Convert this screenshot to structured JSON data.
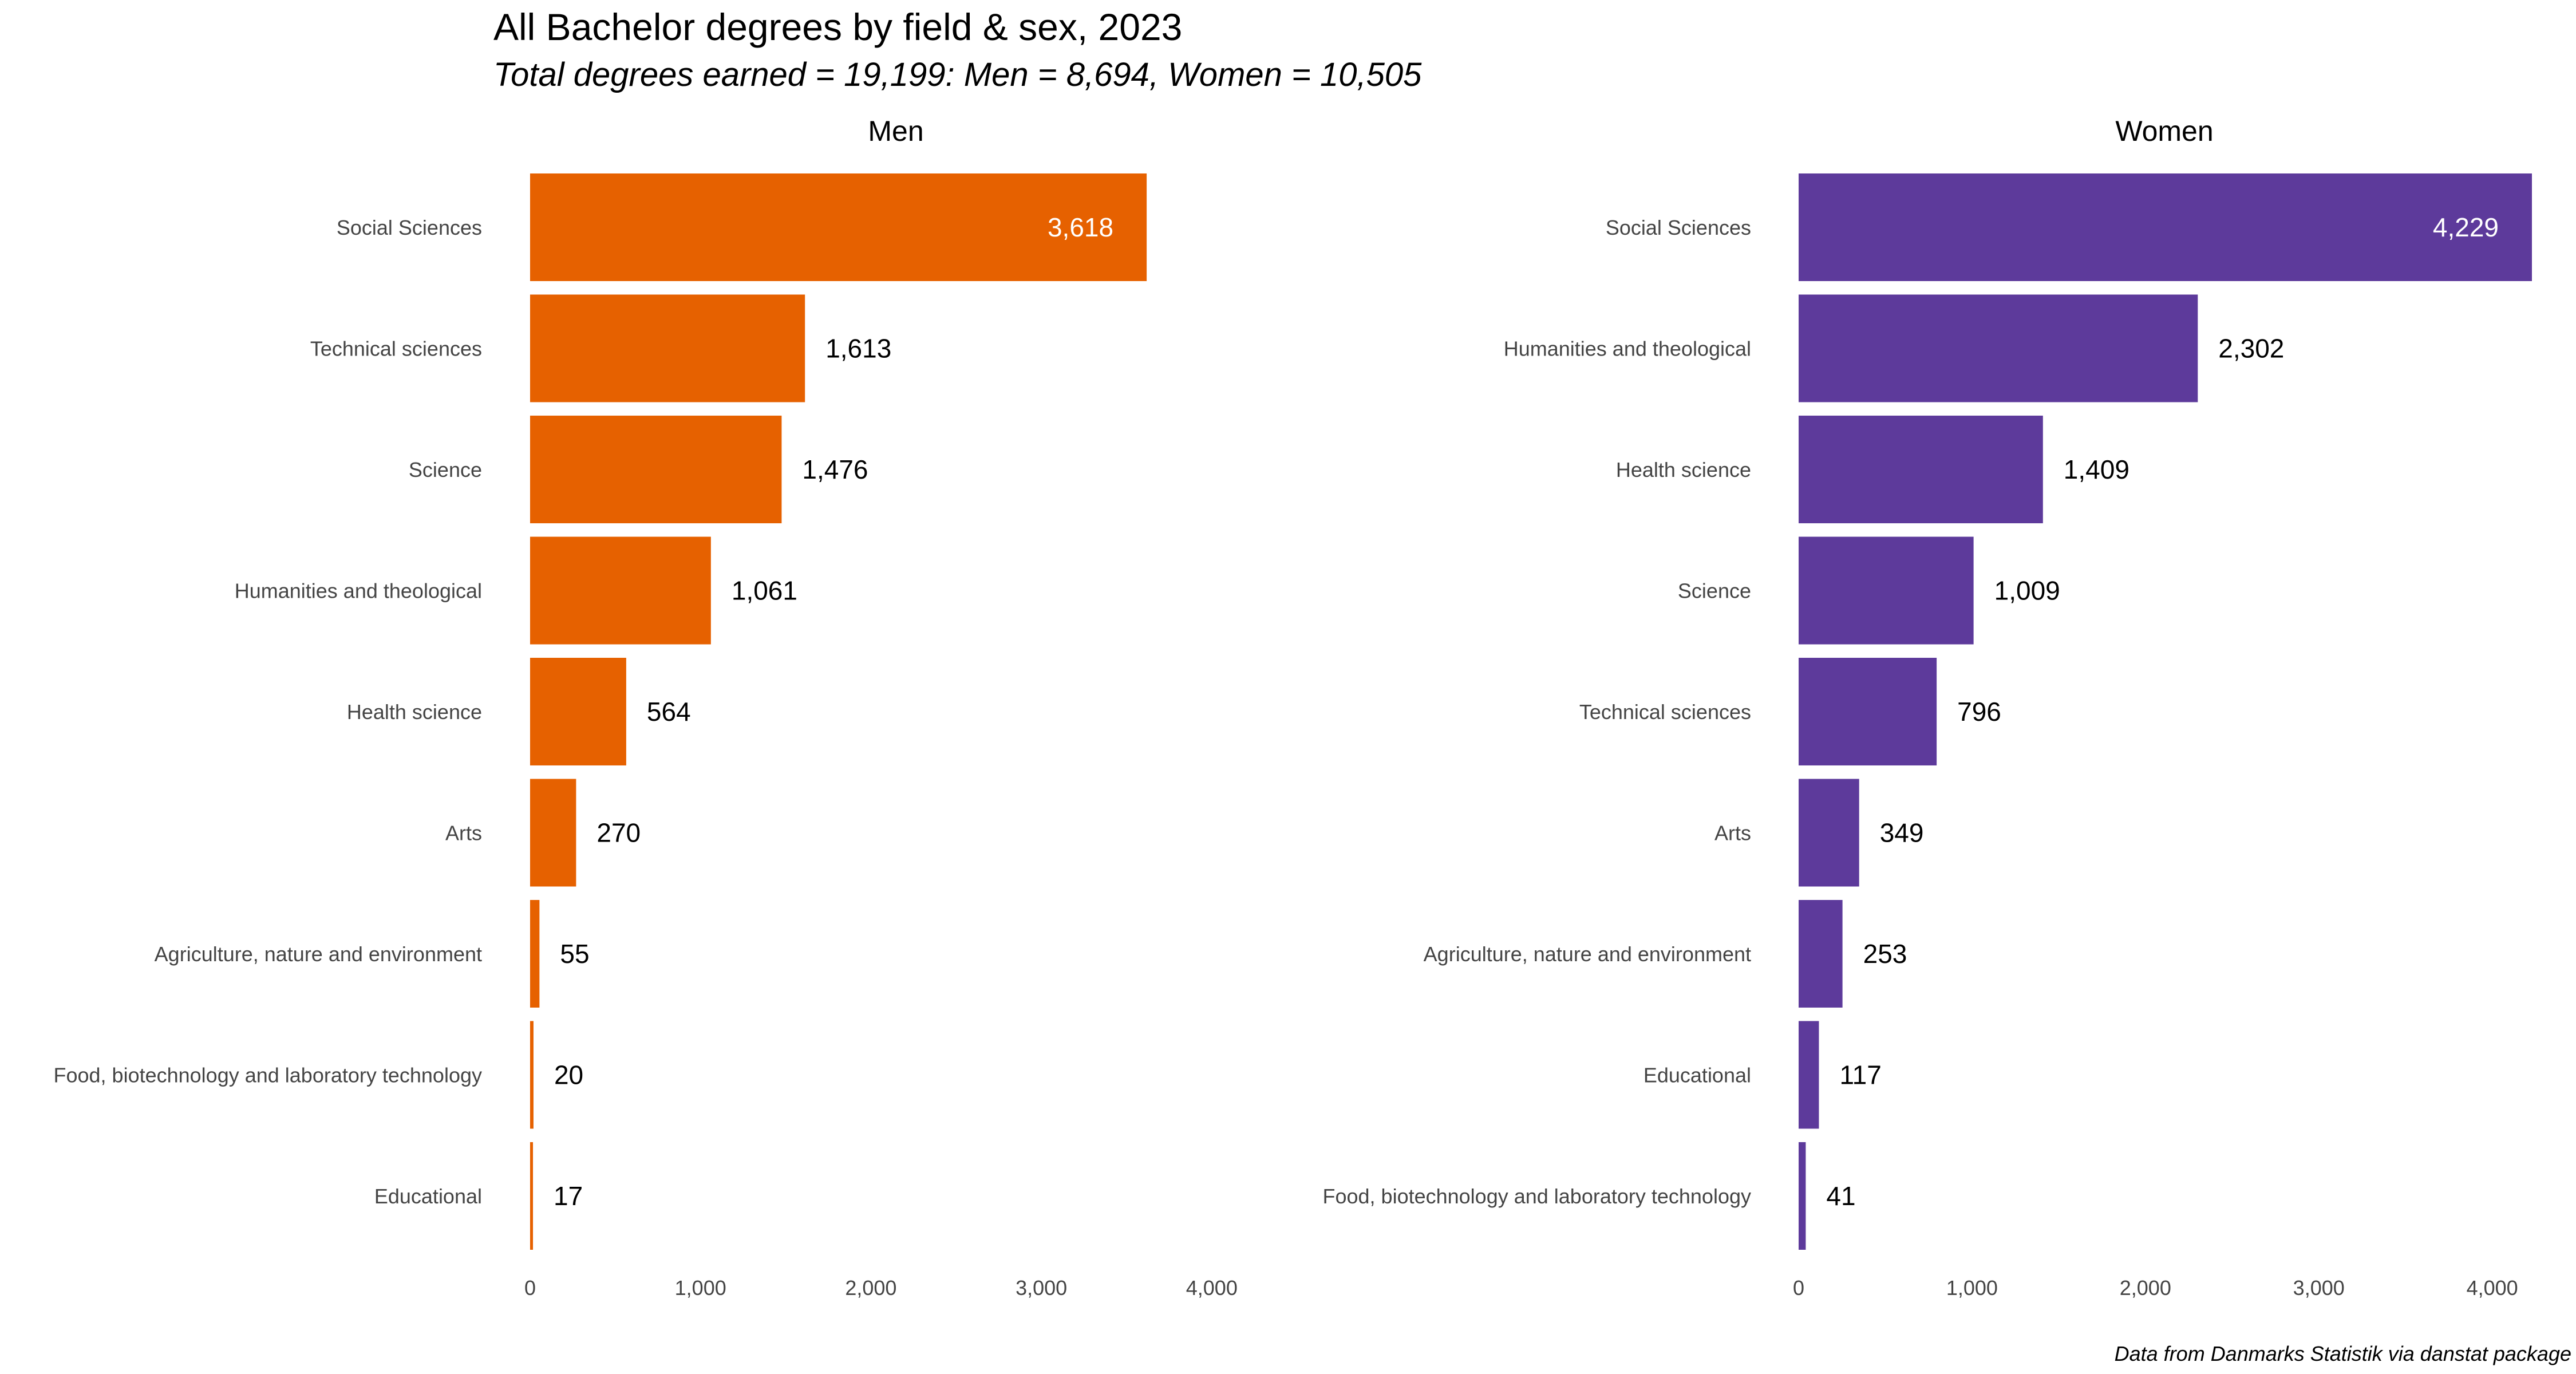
{
  "chart_data": {
    "type": "bar",
    "orientation": "horizontal",
    "title": "All Bachelor degrees by field & sex, 2023",
    "subtitle": "Total degrees earned = 19,199: Men = 8,694, Women = 10,505",
    "caption": "Data from Danmarks Statistik via danstat package",
    "grid": false,
    "xlim": [
      0,
      4229
    ],
    "x_ticks": [
      0,
      1000,
      2000,
      3000,
      4000
    ],
    "x_tick_labels": [
      "0",
      "1,000",
      "2,000",
      "3,000",
      "4,000"
    ],
    "panels": [
      {
        "name": "Men",
        "color": "#E66100",
        "categories": [
          "Social Sciences",
          "Technical sciences",
          "Science",
          "Humanities and theological",
          "Health science",
          "Arts",
          "Agriculture, nature and environment",
          "Food, biotechnology and laboratory technology",
          "Educational"
        ],
        "values": [
          3618,
          1613,
          1476,
          1061,
          564,
          270,
          55,
          20,
          17
        ],
        "value_labels": [
          "3,618",
          "1,613",
          "1,476",
          "1,061",
          "564",
          "270",
          "55",
          "20",
          "17"
        ]
      },
      {
        "name": "Women",
        "color": "#5D3A9B",
        "categories": [
          "Social Sciences",
          "Humanities and theological",
          "Health science",
          "Science",
          "Technical sciences",
          "Arts",
          "Agriculture, nature and environment",
          "Educational",
          "Food, biotechnology and laboratory technology"
        ],
        "values": [
          4229,
          2302,
          1409,
          1009,
          796,
          349,
          253,
          117,
          41
        ],
        "value_labels": [
          "4,229",
          "2,302",
          "1,409",
          "1,009",
          "796",
          "349",
          "253",
          "117",
          "41"
        ]
      }
    ]
  }
}
